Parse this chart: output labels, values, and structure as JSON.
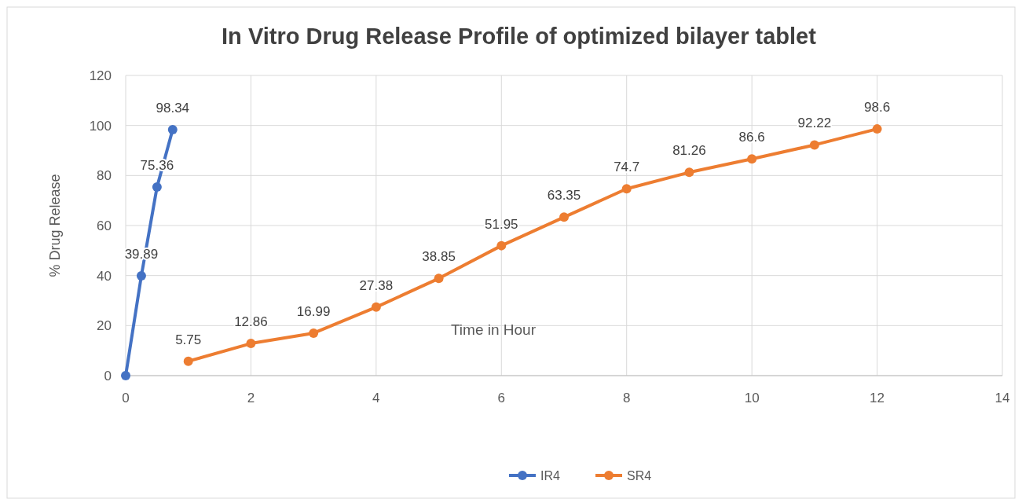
{
  "chart_data": {
    "type": "line",
    "title": "In Vitro Drug Release Profile of optimized bilayer tablet",
    "xlabel": "Time in Hour",
    "ylabel": "% Drug Release",
    "series": [
      {
        "name": "IR4",
        "color": "#4472c4",
        "x": [
          0,
          0.25,
          0.5,
          0.75
        ],
        "values": [
          0,
          39.89,
          75.36,
          98.34
        ],
        "value_labels": [
          null,
          "39.89",
          "75.36",
          "98.34"
        ]
      },
      {
        "name": "SR4",
        "color": "#ed7d31",
        "x": [
          1,
          2,
          3,
          4,
          5,
          6,
          7,
          8,
          9,
          10,
          11,
          12
        ],
        "values": [
          5.75,
          12.86,
          16.99,
          27.38,
          38.85,
          51.95,
          63.35,
          74.7,
          81.26,
          86.6,
          92.22,
          98.6
        ],
        "value_labels": [
          "5.75",
          "12.86",
          "16.99",
          "27.38",
          "38.85",
          "51.95",
          "63.35",
          "74.7",
          "81.26",
          "86.6",
          "92.22",
          "98.6"
        ]
      }
    ],
    "xlim": [
      0,
      14
    ],
    "xticks": [
      0,
      2,
      4,
      6,
      8,
      10,
      12,
      14
    ],
    "ylim": [
      0,
      120
    ],
    "yticks": [
      0,
      20,
      40,
      60,
      80,
      100,
      120
    ],
    "grid": true,
    "legend": "bottom",
    "marker": "circle",
    "line_style": "solid"
  }
}
